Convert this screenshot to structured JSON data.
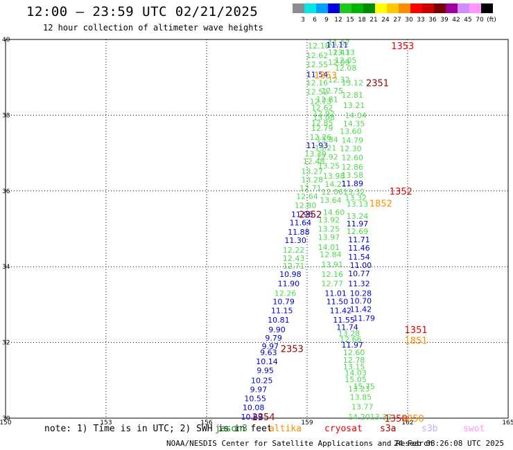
{
  "header": {
    "title": "12:00 – 23:59 UTC 02/21/2025",
    "subtitle": "12 hour collection of altimeter wave heights"
  },
  "colorbar": {
    "segments": [
      {
        "label": "3",
        "color": "#8c8c8c"
      },
      {
        "label": "6",
        "color": "#00e6e6"
      },
      {
        "label": "9",
        "color": "#00a0ff"
      },
      {
        "label": "12",
        "color": "#0000e6"
      },
      {
        "label": "15",
        "color": "#1ec81e"
      },
      {
        "label": "18",
        "color": "#00b400"
      },
      {
        "label": "21",
        "color": "#008c00"
      },
      {
        "label": "24",
        "color": "#ffff00"
      },
      {
        "label": "27",
        "color": "#ffc800"
      },
      {
        "label": "30",
        "color": "#ff8c00"
      },
      {
        "label": "33",
        "color": "#ff0000"
      },
      {
        "label": "36",
        "color": "#c80000"
      },
      {
        "label": "39",
        "color": "#780000"
      },
      {
        "label": "42",
        "color": "#a000a0"
      },
      {
        "label": "45",
        "color": "#d28cff"
      },
      {
        "label": "70",
        "color": "#ff96ff"
      },
      {
        "label": "(ft)",
        "color": "#000000"
      }
    ]
  },
  "footer": {
    "note": "note: 1) Time is in UTC; 2) SWH is in feet",
    "missions": [
      {
        "name": "jason3",
        "color": "#228b22"
      },
      {
        "name": "altika",
        "color": "#ff8c00"
      },
      {
        "name": "cryosat",
        "color": "#e60000"
      },
      {
        "name": "s3a",
        "color": "#a00000"
      },
      {
        "name": "s3b",
        "color": "#b4b4ff"
      },
      {
        "name": "swot",
        "color": "#ff96ff"
      }
    ],
    "credit": "NOAA/NESDIS Center for Satellite Applications and Research",
    "timestamp": "24 Feb 08:26:08 UTC 2025"
  },
  "chart_data": {
    "type": "scatter",
    "xlim": [
      150,
      165
    ],
    "ylim": [
      30,
      40
    ],
    "xticks": [
      "150",
      "153",
      "156",
      "159",
      "162",
      "165"
    ],
    "yticks": [
      "30",
      "32",
      "34",
      "36",
      "38",
      "40"
    ],
    "grid": true,
    "colors": {
      "green": "#4ed84e",
      "blue": "#0000cd",
      "red": "#e60000",
      "orange": "#ff8c00",
      "darkred": "#8b0000"
    },
    "points": [
      {
        "x": 159.35,
        "y": 39.84,
        "v": "12.18",
        "c": "green"
      },
      {
        "x": 159.95,
        "y": 39.92,
        "v": "11.67",
        "c": "green"
      },
      {
        "x": 159.9,
        "y": 39.86,
        "v": "11.11",
        "c": "blue"
      },
      {
        "x": 159.95,
        "y": 39.66,
        "v": "12.43",
        "c": "green"
      },
      {
        "x": 160.1,
        "y": 39.66,
        "v": "13.13",
        "c": "green"
      },
      {
        "x": 159.3,
        "y": 39.58,
        "v": "12.62",
        "c": "green"
      },
      {
        "x": 160.15,
        "y": 39.45,
        "v": "12.05",
        "c": "green"
      },
      {
        "x": 159.95,
        "y": 39.4,
        "v": "12.09",
        "c": "green"
      },
      {
        "x": 159.3,
        "y": 39.34,
        "v": "12.55",
        "c": "green"
      },
      {
        "x": 160.15,
        "y": 39.25,
        "v": "12.08",
        "c": "green"
      },
      {
        "x": 159.3,
        "y": 39.08,
        "v": "11.54",
        "c": "blue"
      },
      {
        "x": 159.95,
        "y": 38.94,
        "v": "12.32",
        "c": "green"
      },
      {
        "x": 160.35,
        "y": 38.86,
        "v": "13.12",
        "c": "green"
      },
      {
        "x": 159.3,
        "y": 38.86,
        "v": "12.16",
        "c": "green"
      },
      {
        "x": 159.75,
        "y": 38.65,
        "v": "12.75",
        "c": "green"
      },
      {
        "x": 159.3,
        "y": 38.62,
        "v": "12.52",
        "c": "green"
      },
      {
        "x": 160.35,
        "y": 38.54,
        "v": "12.81",
        "c": "green"
      },
      {
        "x": 159.6,
        "y": 38.42,
        "v": "12.81",
        "c": "green"
      },
      {
        "x": 159.4,
        "y": 38.36,
        "v": "12.73",
        "c": "green"
      },
      {
        "x": 159.45,
        "y": 38.2,
        "v": "12.62",
        "c": "green"
      },
      {
        "x": 160.4,
        "y": 38.26,
        "v": "13.21",
        "c": "green"
      },
      {
        "x": 159.5,
        "y": 38.04,
        "v": "12.92",
        "c": "green"
      },
      {
        "x": 160.45,
        "y": 38.0,
        "v": "14.04",
        "c": "green"
      },
      {
        "x": 159.5,
        "y": 37.94,
        "v": "13.08",
        "c": "green"
      },
      {
        "x": 159.45,
        "y": 37.8,
        "v": "12.85",
        "c": "green"
      },
      {
        "x": 160.4,
        "y": 37.78,
        "v": "14.35",
        "c": "green"
      },
      {
        "x": 159.45,
        "y": 37.66,
        "v": "12.79",
        "c": "green"
      },
      {
        "x": 160.3,
        "y": 37.58,
        "v": "13.60",
        "c": "green"
      },
      {
        "x": 159.4,
        "y": 37.42,
        "v": "12.26",
        "c": "green"
      },
      {
        "x": 159.6,
        "y": 37.36,
        "v": "13.84",
        "c": "green"
      },
      {
        "x": 160.35,
        "y": 37.34,
        "v": "14.79",
        "c": "green"
      },
      {
        "x": 159.3,
        "y": 37.2,
        "v": "11.93",
        "c": "blue"
      },
      {
        "x": 159.55,
        "y": 37.14,
        "v": "13.21",
        "c": "green"
      },
      {
        "x": 160.3,
        "y": 37.12,
        "v": "12.30",
        "c": "green"
      },
      {
        "x": 159.25,
        "y": 36.98,
        "v": "13.39",
        "c": "green"
      },
      {
        "x": 159.6,
        "y": 36.9,
        "v": "12.92",
        "c": "green"
      },
      {
        "x": 160.35,
        "y": 36.88,
        "v": "12.60",
        "c": "green"
      },
      {
        "x": 159.2,
        "y": 36.78,
        "v": "12.48",
        "c": "green"
      },
      {
        "x": 159.65,
        "y": 36.66,
        "v": "13.25",
        "c": "green"
      },
      {
        "x": 160.35,
        "y": 36.64,
        "v": "12.86",
        "c": "green"
      },
      {
        "x": 159.15,
        "y": 36.52,
        "v": "13.27",
        "c": "green"
      },
      {
        "x": 159.8,
        "y": 36.4,
        "v": "13.98",
        "c": "green"
      },
      {
        "x": 160.35,
        "y": 36.42,
        "v": "13.58",
        "c": "green"
      },
      {
        "x": 159.15,
        "y": 36.3,
        "v": "13.28",
        "c": "green"
      },
      {
        "x": 159.85,
        "y": 36.18,
        "v": "14.21",
        "c": "green"
      },
      {
        "x": 160.35,
        "y": 36.2,
        "v": "11.89",
        "c": "blue"
      },
      {
        "x": 159.1,
        "y": 36.08,
        "v": "12.71",
        "c": "green"
      },
      {
        "x": 159.75,
        "y": 35.98,
        "v": "12.06",
        "c": "green"
      },
      {
        "x": 160.4,
        "y": 35.98,
        "v": "13.32",
        "c": "green"
      },
      {
        "x": 159.0,
        "y": 35.86,
        "v": "12.64",
        "c": "green"
      },
      {
        "x": 160.45,
        "y": 35.82,
        "v": "13.32",
        "c": "green"
      },
      {
        "x": 159.7,
        "y": 35.76,
        "v": "13.64",
        "c": "green"
      },
      {
        "x": 160.5,
        "y": 35.66,
        "v": "13.13",
        "c": "green"
      },
      {
        "x": 158.95,
        "y": 35.62,
        "v": "12.80",
        "c": "green"
      },
      {
        "x": 159.8,
        "y": 35.44,
        "v": "14.60",
        "c": "green"
      },
      {
        "x": 160.5,
        "y": 35.34,
        "v": "13.24",
        "c": "green"
      },
      {
        "x": 158.85,
        "y": 35.38,
        "v": "11.96",
        "c": "blue"
      },
      {
        "x": 159.65,
        "y": 35.24,
        "v": "13.92",
        "c": "green"
      },
      {
        "x": 160.5,
        "y": 35.14,
        "v": "11.97",
        "c": "blue"
      },
      {
        "x": 158.8,
        "y": 35.16,
        "v": "11.64",
        "c": "blue"
      },
      {
        "x": 159.65,
        "y": 35.0,
        "v": "13.25",
        "c": "green"
      },
      {
        "x": 160.5,
        "y": 34.94,
        "v": "12.69",
        "c": "green"
      },
      {
        "x": 158.75,
        "y": 34.92,
        "v": "11.88",
        "c": "blue"
      },
      {
        "x": 159.65,
        "y": 34.78,
        "v": "13.97",
        "c": "green"
      },
      {
        "x": 160.55,
        "y": 34.72,
        "v": "11.71",
        "c": "blue"
      },
      {
        "x": 158.65,
        "y": 34.7,
        "v": "11.30",
        "c": "blue"
      },
      {
        "x": 159.65,
        "y": 34.52,
        "v": "14.01",
        "c": "green"
      },
      {
        "x": 160.55,
        "y": 34.5,
        "v": "11.46",
        "c": "blue"
      },
      {
        "x": 158.6,
        "y": 34.44,
        "v": "12.22",
        "c": "green"
      },
      {
        "x": 159.7,
        "y": 34.32,
        "v": "12.84",
        "c": "green"
      },
      {
        "x": 160.55,
        "y": 34.26,
        "v": "11.54",
        "c": "blue"
      },
      {
        "x": 158.6,
        "y": 34.22,
        "v": "12.43",
        "c": "green"
      },
      {
        "x": 159.75,
        "y": 34.06,
        "v": "13.91",
        "c": "green"
      },
      {
        "x": 160.6,
        "y": 34.04,
        "v": "11.00",
        "c": "blue"
      },
      {
        "x": 158.6,
        "y": 34.02,
        "v": "12.71",
        "c": "green"
      },
      {
        "x": 158.5,
        "y": 33.8,
        "v": "10.98",
        "c": "blue"
      },
      {
        "x": 159.75,
        "y": 33.8,
        "v": "12.16",
        "c": "green"
      },
      {
        "x": 160.55,
        "y": 33.82,
        "v": "10.77",
        "c": "blue"
      },
      {
        "x": 158.45,
        "y": 33.56,
        "v": "11.90",
        "c": "blue"
      },
      {
        "x": 159.75,
        "y": 33.56,
        "v": "12.77",
        "c": "green"
      },
      {
        "x": 160.55,
        "y": 33.56,
        "v": "11.32",
        "c": "blue"
      },
      {
        "x": 160.6,
        "y": 33.3,
        "v": "10.28",
        "c": "blue"
      },
      {
        "x": 158.35,
        "y": 33.3,
        "v": "12.26",
        "c": "green"
      },
      {
        "x": 159.85,
        "y": 33.3,
        "v": "11.01",
        "c": "blue"
      },
      {
        "x": 160.6,
        "y": 33.1,
        "v": "10.70",
        "c": "blue"
      },
      {
        "x": 158.3,
        "y": 33.08,
        "v": "10.79",
        "c": "blue"
      },
      {
        "x": 159.9,
        "y": 33.08,
        "v": "11.50",
        "c": "blue"
      },
      {
        "x": 160.6,
        "y": 32.88,
        "v": "11.42",
        "c": "blue"
      },
      {
        "x": 158.25,
        "y": 32.84,
        "v": "11.15",
        "c": "blue"
      },
      {
        "x": 160.0,
        "y": 32.84,
        "v": "11.42",
        "c": "blue"
      },
      {
        "x": 160.7,
        "y": 32.64,
        "v": "11.79",
        "c": "blue"
      },
      {
        "x": 158.15,
        "y": 32.6,
        "v": "10.81",
        "c": "blue"
      },
      {
        "x": 160.1,
        "y": 32.6,
        "v": "11.55",
        "c": "blue"
      },
      {
        "x": 158.1,
        "y": 32.34,
        "v": "9.90",
        "c": "blue"
      },
      {
        "x": 160.2,
        "y": 32.4,
        "v": "11.74",
        "c": "blue"
      },
      {
        "x": 160.25,
        "y": 32.24,
        "v": "13.28",
        "c": "green"
      },
      {
        "x": 158.0,
        "y": 32.12,
        "v": "9.79",
        "c": "blue"
      },
      {
        "x": 160.3,
        "y": 32.08,
        "v": "12.66",
        "c": "green"
      },
      {
        "x": 157.9,
        "y": 31.9,
        "v": "9.97",
        "c": "blue"
      },
      {
        "x": 160.35,
        "y": 31.94,
        "v": "11.97",
        "c": "blue"
      },
      {
        "x": 157.85,
        "y": 31.74,
        "v": "9.63",
        "c": "blue"
      },
      {
        "x": 160.4,
        "y": 31.74,
        "v": "12.60",
        "c": "green"
      },
      {
        "x": 160.4,
        "y": 31.54,
        "v": "12.78",
        "c": "green"
      },
      {
        "x": 157.8,
        "y": 31.5,
        "v": "10.14",
        "c": "blue"
      },
      {
        "x": 160.4,
        "y": 31.36,
        "v": "13.15",
        "c": "green"
      },
      {
        "x": 160.45,
        "y": 31.2,
        "v": "14.03",
        "c": "green"
      },
      {
        "x": 157.75,
        "y": 31.26,
        "v": "9.95",
        "c": "blue"
      },
      {
        "x": 160.45,
        "y": 31.02,
        "v": "15.05",
        "c": "green"
      },
      {
        "x": 157.65,
        "y": 31.0,
        "v": "10.25",
        "c": "blue"
      },
      {
        "x": 160.7,
        "y": 30.84,
        "v": "15.75",
        "c": "green"
      },
      {
        "x": 157.55,
        "y": 30.76,
        "v": "9.97",
        "c": "blue"
      },
      {
        "x": 160.55,
        "y": 30.78,
        "v": "13.23",
        "c": "green"
      },
      {
        "x": 160.6,
        "y": 30.56,
        "v": "13.85",
        "c": "green"
      },
      {
        "x": 157.45,
        "y": 30.52,
        "v": "10.55",
        "c": "blue"
      },
      {
        "x": 160.65,
        "y": 30.3,
        "v": "13.77",
        "c": "green"
      },
      {
        "x": 157.4,
        "y": 30.28,
        "v": "10.08",
        "c": "blue"
      },
      {
        "x": 157.35,
        "y": 30.04,
        "v": "10.69",
        "c": "blue"
      },
      {
        "x": 160.55,
        "y": 30.04,
        "v": "14.20",
        "c": "green"
      },
      {
        "x": 161.2,
        "y": 30.04,
        "v": "13.32",
        "c": "green"
      }
    ],
    "passes": [
      {
        "x": 161.85,
        "y": 39.84,
        "label": "1353",
        "c": "red"
      },
      {
        "x": 159.55,
        "y": 39.06,
        "label": "1853",
        "c": "orange"
      },
      {
        "x": 161.1,
        "y": 38.86,
        "label": "2351",
        "c": "darkred"
      },
      {
        "x": 161.8,
        "y": 36.0,
        "label": "1352",
        "c": "red"
      },
      {
        "x": 161.2,
        "y": 35.68,
        "label": "1852",
        "c": "orange"
      },
      {
        "x": 159.1,
        "y": 35.38,
        "label": "2352",
        "c": "darkred"
      },
      {
        "x": 162.25,
        "y": 32.34,
        "label": "1351",
        "c": "red"
      },
      {
        "x": 162.25,
        "y": 32.06,
        "label": "1851",
        "c": "orange"
      },
      {
        "x": 158.55,
        "y": 31.84,
        "label": "2353",
        "c": "darkred"
      },
      {
        "x": 157.7,
        "y": 30.04,
        "label": "2354",
        "c": "darkred"
      },
      {
        "x": 161.65,
        "y": 30.0,
        "label": "1350",
        "c": "red"
      },
      {
        "x": 162.15,
        "y": 30.0,
        "label": "1850",
        "c": "orange"
      }
    ]
  }
}
